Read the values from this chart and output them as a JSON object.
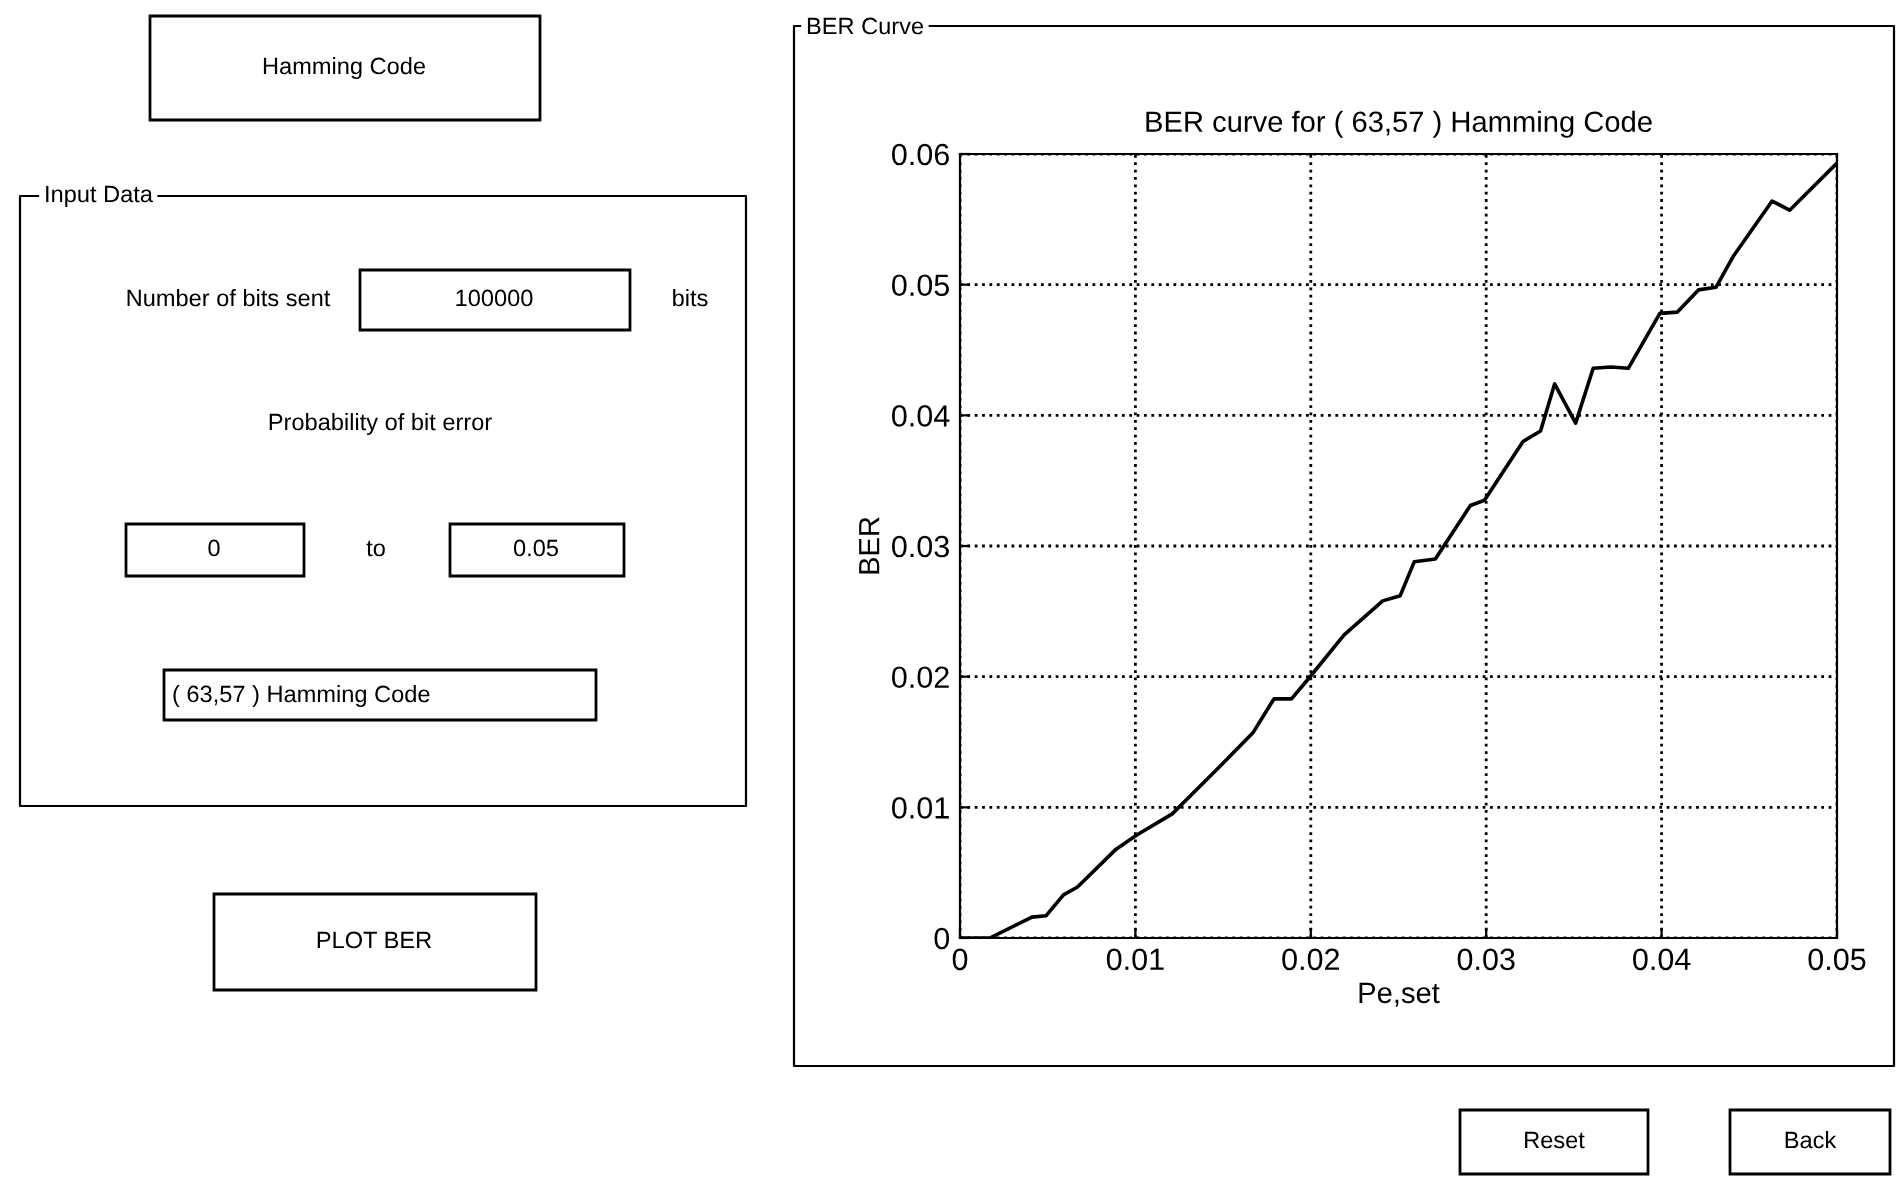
{
  "chart_data": [
    {
      "type": "other",
      "annotations": [
        "Hamming Code",
        "Input Data",
        "Number of bits sent",
        "100000",
        "bits",
        "Probability of bit error",
        "0",
        "to",
        "0.05",
        "( 63,57 ) Hamming Code",
        "PLOT BER",
        "BER Curve",
        "Reset",
        "Back"
      ]
    },
    {
      "type": "line",
      "title": "BER curve for ( 63,57 ) Hamming Code",
      "xlabel": "Pe,set",
      "ylabel": "BER",
      "color": "#000000",
      "x": [
        0,
        0.0017,
        0.0041,
        0.0049,
        0.0059,
        0.0067,
        0.0089,
        0.0101,
        0.0121,
        0.0145,
        0.0167,
        0.0179,
        0.0189,
        0.0199,
        0.0219,
        0.0241,
        0.0251,
        0.0259,
        0.0271,
        0.0291,
        0.0299,
        0.0321,
        0.0331,
        0.0339,
        0.0351,
        0.0361,
        0.0371,
        0.0381,
        0.0399,
        0.0409,
        0.0421,
        0.0431,
        0.0441,
        0.0463,
        0.0473,
        0.0485,
        0.05
      ],
      "values": [
        0,
        0,
        0.0016,
        0.0017,
        0.0033,
        0.0039,
        0.0068,
        0.0079,
        0.0095,
        0.0127,
        0.0157,
        0.0183,
        0.0183,
        0.0199,
        0.0232,
        0.0258,
        0.0262,
        0.0288,
        0.029,
        0.0331,
        0.0335,
        0.038,
        0.0388,
        0.0424,
        0.0394,
        0.0436,
        0.0437,
        0.0436,
        0.0478,
        0.0479,
        0.0496,
        0.0498,
        0.0522,
        0.0564,
        0.0557,
        0.0573,
        0.0593
      ],
      "xlim": [
        0,
        0.05
      ],
      "ylim": [
        0,
        0.06
      ],
      "xticks": [
        0,
        0.01,
        0.02,
        0.03,
        0.04,
        0.05
      ],
      "yticks": [
        0,
        0.01,
        0.02,
        0.03,
        0.04,
        0.05,
        0.06
      ],
      "grid": true,
      "line_style": "solid",
      "marker": "none"
    }
  ]
}
